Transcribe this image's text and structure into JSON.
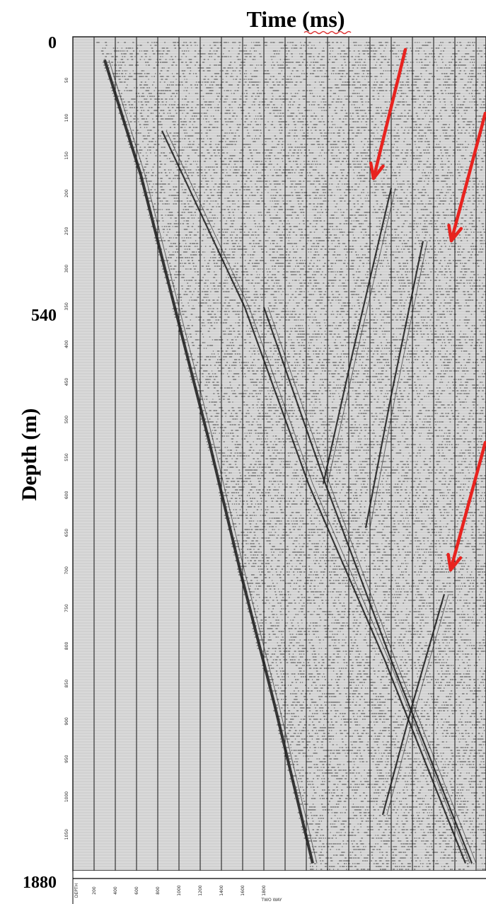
{
  "chart_data": {
    "type": "line",
    "title": "Time (ms)",
    "xlabel": "Time (ms)",
    "ylabel": "Depth (m)",
    "y_ticks_major": [
      "0",
      "540",
      "1880"
    ],
    "y_major_values": [
      0,
      540,
      1880
    ],
    "ylim": [
      0,
      1880
    ],
    "x_tick_labels": [
      "DEPTH",
      "200",
      "400",
      "600",
      "800",
      "1000",
      "1200",
      "1400",
      "1600",
      "1800"
    ],
    "inner_depth_labels": [
      "50",
      "100",
      "150",
      "200",
      "250",
      "300",
      "350",
      "400",
      "450",
      "500",
      "550",
      "600",
      "650",
      "700",
      "750",
      "800",
      "850",
      "900",
      "950",
      "1000",
      "1050"
    ],
    "bottom_small_label": "TWO WAY",
    "series": [
      {
        "kind": "first-arrival",
        "depth": [
          40,
          300,
          600,
          900,
          1200,
          1500,
          1860
        ],
        "time": [
          150,
          320,
          480,
          640,
          790,
          950,
          1130
        ]
      },
      {
        "kind": "downgoing-multiple-1",
        "depth": [
          200,
          600,
          1000,
          1400,
          1860
        ],
        "time": [
          420,
          810,
          1110,
          1470,
          1850
        ]
      },
      {
        "kind": "downgoing-multiple-2",
        "depth": [
          600,
          1000,
          1400,
          1860
        ],
        "time": [
          900,
          1190,
          1500,
          1880
        ]
      },
      {
        "kind": "upgoing-reflection-1",
        "depth": [
          330,
          700,
          1000
        ],
        "time": [
          1500,
          1320,
          1180
        ]
      },
      {
        "kind": "upgoing-reflection-2",
        "depth": [
          450,
          800,
          1100
        ],
        "time": [
          1650,
          1500,
          1380
        ]
      },
      {
        "kind": "upgoing-reflection-3",
        "depth": [
          1250,
          1500,
          1750
        ],
        "time": [
          1750,
          1600,
          1460
        ]
      }
    ],
    "arrows": [
      {
        "color": "#e8231f"
      },
      {
        "color": "#e8231f"
      },
      {
        "color": "#e8231f"
      }
    ],
    "colors": {
      "trace": "#1a1a1a",
      "grid": "#111111",
      "arrow": "#e8231f",
      "background": "#d9d9d9"
    }
  }
}
